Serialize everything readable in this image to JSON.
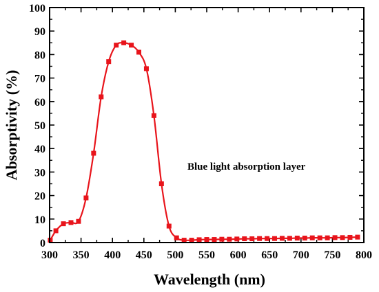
{
  "chart_data": {
    "type": "line",
    "xlabel": "Wavelength (nm)",
    "ylabel": "Absorptivity  (%)",
    "xlim": [
      300,
      800
    ],
    "ylim": [
      0,
      100
    ],
    "x_ticks": [
      300,
      350,
      400,
      450,
      500,
      550,
      600,
      650,
      700,
      750,
      800
    ],
    "y_ticks": [
      0,
      10,
      20,
      30,
      40,
      50,
      60,
      70,
      80,
      90,
      100
    ],
    "grid": false,
    "legend": "none",
    "annotation": "Blue light absorption layer",
    "series": [
      {
        "color": "#e8141b",
        "marker": "square",
        "x": [
          301,
          310,
          322,
          334,
          346,
          358,
          370,
          382,
          394,
          406,
          418,
          430,
          442,
          454,
          466,
          478,
          490,
          502,
          514,
          526,
          538,
          550,
          562,
          574,
          586,
          598,
          610,
          622,
          634,
          646,
          658,
          670,
          682,
          694,
          706,
          718,
          730,
          742,
          754,
          766,
          778,
          790
        ],
        "y": [
          1.0,
          5.0,
          8.0,
          8.5,
          9.0,
          19.0,
          38.0,
          62.0,
          77.0,
          84.0,
          85.0,
          84.0,
          81.0,
          74.0,
          54.0,
          25.0,
          7.0,
          2.0,
          1.0,
          1.0,
          1.2,
          1.3,
          1.3,
          1.4,
          1.4,
          1.5,
          1.6,
          1.6,
          1.7,
          1.7,
          1.7,
          1.8,
          1.8,
          1.9,
          1.9,
          2.0,
          2.0,
          2.0,
          2.1,
          2.1,
          2.2,
          2.3
        ]
      }
    ]
  }
}
